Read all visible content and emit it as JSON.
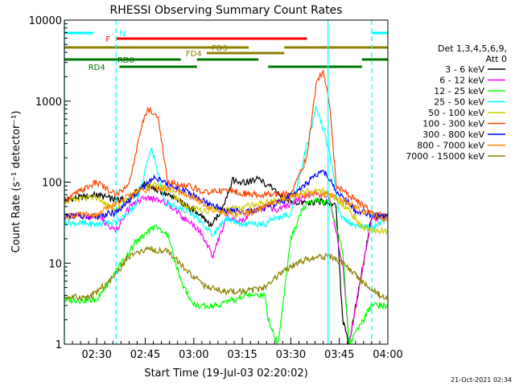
{
  "chart_data": {
    "type": "line",
    "title": "RHESSI Observing Summary Count Rates",
    "xlabel": "Start Time (19-Jul-03 02:20:02)",
    "ylabel": "Count Rate (s⁻¹ detector⁻¹)",
    "yscale": "log",
    "ylim": [
      1,
      10000
    ],
    "xlim_minutes": [
      0,
      100
    ],
    "x_ticks": [
      {
        "t": 10,
        "label": "02:30"
      },
      {
        "t": 25,
        "label": "02:45"
      },
      {
        "t": 40,
        "label": "03:00"
      },
      {
        "t": 55,
        "label": "03:15"
      },
      {
        "t": 70,
        "label": "03:30"
      },
      {
        "t": 85,
        "label": "03:45"
      },
      {
        "t": 100,
        "label": "04:00"
      }
    ],
    "y_ticks": [
      {
        "v": 1,
        "label": "1"
      },
      {
        "v": 10,
        "label": "10"
      },
      {
        "v": 100,
        "label": "100"
      },
      {
        "v": 1000,
        "label": "1000"
      },
      {
        "v": 10000,
        "label": "10000"
      }
    ],
    "legend": {
      "title_line1": "Det 1,3,4,5,6,9,",
      "title_line2": "Att 0",
      "position": "right"
    },
    "series": [
      {
        "name": "3 - 6 keV",
        "color": "#000000",
        "points": [
          [
            0,
            60
          ],
          [
            10,
            70
          ],
          [
            16,
            60
          ],
          [
            20,
            62
          ],
          [
            25,
            95
          ],
          [
            30,
            75
          ],
          [
            35,
            60
          ],
          [
            40,
            45
          ],
          [
            45,
            30
          ],
          [
            48,
            40
          ],
          [
            52,
            105
          ],
          [
            56,
            100
          ],
          [
            60,
            110
          ],
          [
            64,
            85
          ],
          [
            68,
            62
          ],
          [
            72,
            55
          ],
          [
            76,
            55
          ],
          [
            80,
            58
          ],
          [
            84,
            50
          ],
          [
            86,
            2
          ],
          [
            88,
            1
          ],
          [
            95,
            38
          ],
          [
            100,
            38
          ]
        ]
      },
      {
        "name": "6 - 12 keV",
        "color": "#ff00ff",
        "points": [
          [
            0,
            38
          ],
          [
            10,
            38
          ],
          [
            16,
            25
          ],
          [
            20,
            48
          ],
          [
            25,
            65
          ],
          [
            28,
            60
          ],
          [
            32,
            55
          ],
          [
            36,
            38
          ],
          [
            42,
            25
          ],
          [
            46,
            12
          ],
          [
            50,
            38
          ],
          [
            54,
            32
          ],
          [
            58,
            42
          ],
          [
            62,
            50
          ],
          [
            66,
            45
          ],
          [
            72,
            60
          ],
          [
            78,
            75
          ],
          [
            82,
            62
          ],
          [
            86,
            10
          ],
          [
            88,
            1
          ],
          [
            95,
            36
          ],
          [
            100,
            36
          ]
        ]
      },
      {
        "name": "12 - 25 keV",
        "color": "#00ff00",
        "points": [
          [
            0,
            3.5
          ],
          [
            10,
            3.5
          ],
          [
            16,
            8
          ],
          [
            22,
            18
          ],
          [
            28,
            28
          ],
          [
            32,
            22
          ],
          [
            36,
            6
          ],
          [
            40,
            3
          ],
          [
            48,
            3
          ],
          [
            56,
            4
          ],
          [
            62,
            4
          ],
          [
            63,
            2
          ],
          [
            66,
            1
          ],
          [
            70,
            20
          ],
          [
            74,
            50
          ],
          [
            78,
            60
          ],
          [
            82,
            55
          ],
          [
            86,
            15
          ],
          [
            88,
            1
          ],
          [
            95,
            3
          ],
          [
            100,
            3
          ]
        ]
      },
      {
        "name": "25 - 50 keV",
        "color": "#00ffff",
        "points": [
          [
            0,
            32
          ],
          [
            10,
            30
          ],
          [
            16,
            32
          ],
          [
            22,
            50
          ],
          [
            27,
            270
          ],
          [
            31,
            55
          ],
          [
            36,
            48
          ],
          [
            40,
            40
          ],
          [
            46,
            22
          ],
          [
            50,
            35
          ],
          [
            56,
            30
          ],
          [
            62,
            30
          ],
          [
            64,
            35
          ],
          [
            70,
            40
          ],
          [
            74,
            200
          ],
          [
            78,
            860
          ],
          [
            82,
            240
          ],
          [
            85,
            40
          ],
          [
            90,
            28
          ],
          [
            96,
            28
          ],
          [
            100,
            36
          ]
        ]
      },
      {
        "name": "50 - 100 keV",
        "color": "#cccc00",
        "points": [
          [
            0,
            58
          ],
          [
            10,
            65
          ],
          [
            16,
            45
          ],
          [
            22,
            70
          ],
          [
            26,
            95
          ],
          [
            32,
            82
          ],
          [
            38,
            48
          ],
          [
            44,
            45
          ],
          [
            50,
            45
          ],
          [
            56,
            50
          ],
          [
            62,
            55
          ],
          [
            68,
            62
          ],
          [
            74,
            75
          ],
          [
            80,
            78
          ],
          [
            84,
            60
          ],
          [
            88,
            45
          ],
          [
            92,
            28
          ],
          [
            96,
            25
          ],
          [
            100,
            25
          ]
        ]
      },
      {
        "name": "100 - 300 keV",
        "color": "#ff4400",
        "points": [
          [
            0,
            60
          ],
          [
            10,
            100
          ],
          [
            16,
            70
          ],
          [
            20,
            95
          ],
          [
            24,
            500
          ],
          [
            26,
            800
          ],
          [
            29,
            600
          ],
          [
            32,
            100
          ],
          [
            38,
            90
          ],
          [
            44,
            75
          ],
          [
            50,
            80
          ],
          [
            56,
            72
          ],
          [
            62,
            70
          ],
          [
            70,
            72
          ],
          [
            75,
            200
          ],
          [
            78,
            1800
          ],
          [
            80,
            2300
          ],
          [
            82,
            900
          ],
          [
            84,
            90
          ],
          [
            90,
            60
          ],
          [
            96,
            40
          ],
          [
            100,
            38
          ]
        ]
      },
      {
        "name": "300 - 800 keV",
        "color": "#0000ff",
        "points": [
          [
            0,
            38
          ],
          [
            10,
            38
          ],
          [
            16,
            42
          ],
          [
            22,
            70
          ],
          [
            28,
            120
          ],
          [
            32,
            90
          ],
          [
            38,
            75
          ],
          [
            44,
            55
          ],
          [
            50,
            45
          ],
          [
            56,
            42
          ],
          [
            62,
            48
          ],
          [
            68,
            60
          ],
          [
            74,
            90
          ],
          [
            80,
            140
          ],
          [
            84,
            80
          ],
          [
            90,
            45
          ],
          [
            96,
            38
          ],
          [
            100,
            38
          ]
        ]
      },
      {
        "name": "800 - 7000 keV",
        "color": "#ff8800",
        "points": [
          [
            0,
            38
          ],
          [
            10,
            40
          ],
          [
            16,
            55
          ],
          [
            22,
            75
          ],
          [
            28,
            85
          ],
          [
            34,
            80
          ],
          [
            40,
            65
          ],
          [
            46,
            45
          ],
          [
            52,
            40
          ],
          [
            58,
            42
          ],
          [
            64,
            55
          ],
          [
            70,
            65
          ],
          [
            76,
            72
          ],
          [
            82,
            70
          ],
          [
            88,
            55
          ],
          [
            94,
            40
          ],
          [
            100,
            35
          ]
        ]
      },
      {
        "name": "7000 - 15000 keV",
        "color": "#8b8000",
        "points": [
          [
            0,
            3.8
          ],
          [
            8,
            3.8
          ],
          [
            14,
            6
          ],
          [
            20,
            12
          ],
          [
            26,
            15
          ],
          [
            32,
            14
          ],
          [
            38,
            8
          ],
          [
            44,
            5
          ],
          [
            50,
            4.5
          ],
          [
            56,
            4.5
          ],
          [
            62,
            5
          ],
          [
            66,
            7
          ],
          [
            72,
            10
          ],
          [
            78,
            12
          ],
          [
            82,
            12
          ],
          [
            86,
            10
          ],
          [
            90,
            7
          ],
          [
            94,
            5
          ],
          [
            100,
            3.5
          ]
        ]
      }
    ],
    "state_bars": [
      {
        "label": "N",
        "color": "#00ffff",
        "label_t": 18,
        "segments": [
          [
            0,
            9
          ],
          [
            95,
            100
          ]
        ]
      },
      {
        "label": "F",
        "color": "#ff0000",
        "label_t": 13.5,
        "segments": [
          [
            16,
            75
          ]
        ]
      },
      {
        "label": "FD3",
        "color": "#8b8000",
        "label_t": 48,
        "segments": [
          [
            0,
            57
          ],
          [
            68,
            100
          ]
        ]
      },
      {
        "label": "FD4",
        "color": "#8b8000",
        "label_t": 40,
        "segments": [
          [
            44,
            68
          ]
        ]
      },
      {
        "label": "RD0",
        "color": "#007700",
        "label_t": 19,
        "segments": [
          [
            0,
            36
          ],
          [
            41,
            60
          ],
          [
            92,
            100
          ]
        ]
      },
      {
        "label": "RD4",
        "color": "#007700",
        "label_t": 10,
        "segments": [
          [
            17,
            41
          ],
          [
            63,
            92
          ]
        ]
      }
    ],
    "dashed_vlines_t": [
      16,
      95
    ],
    "solid_vlines_t": [
      0,
      81.5
    ],
    "footer": "21-Oct-2021 02:34"
  }
}
